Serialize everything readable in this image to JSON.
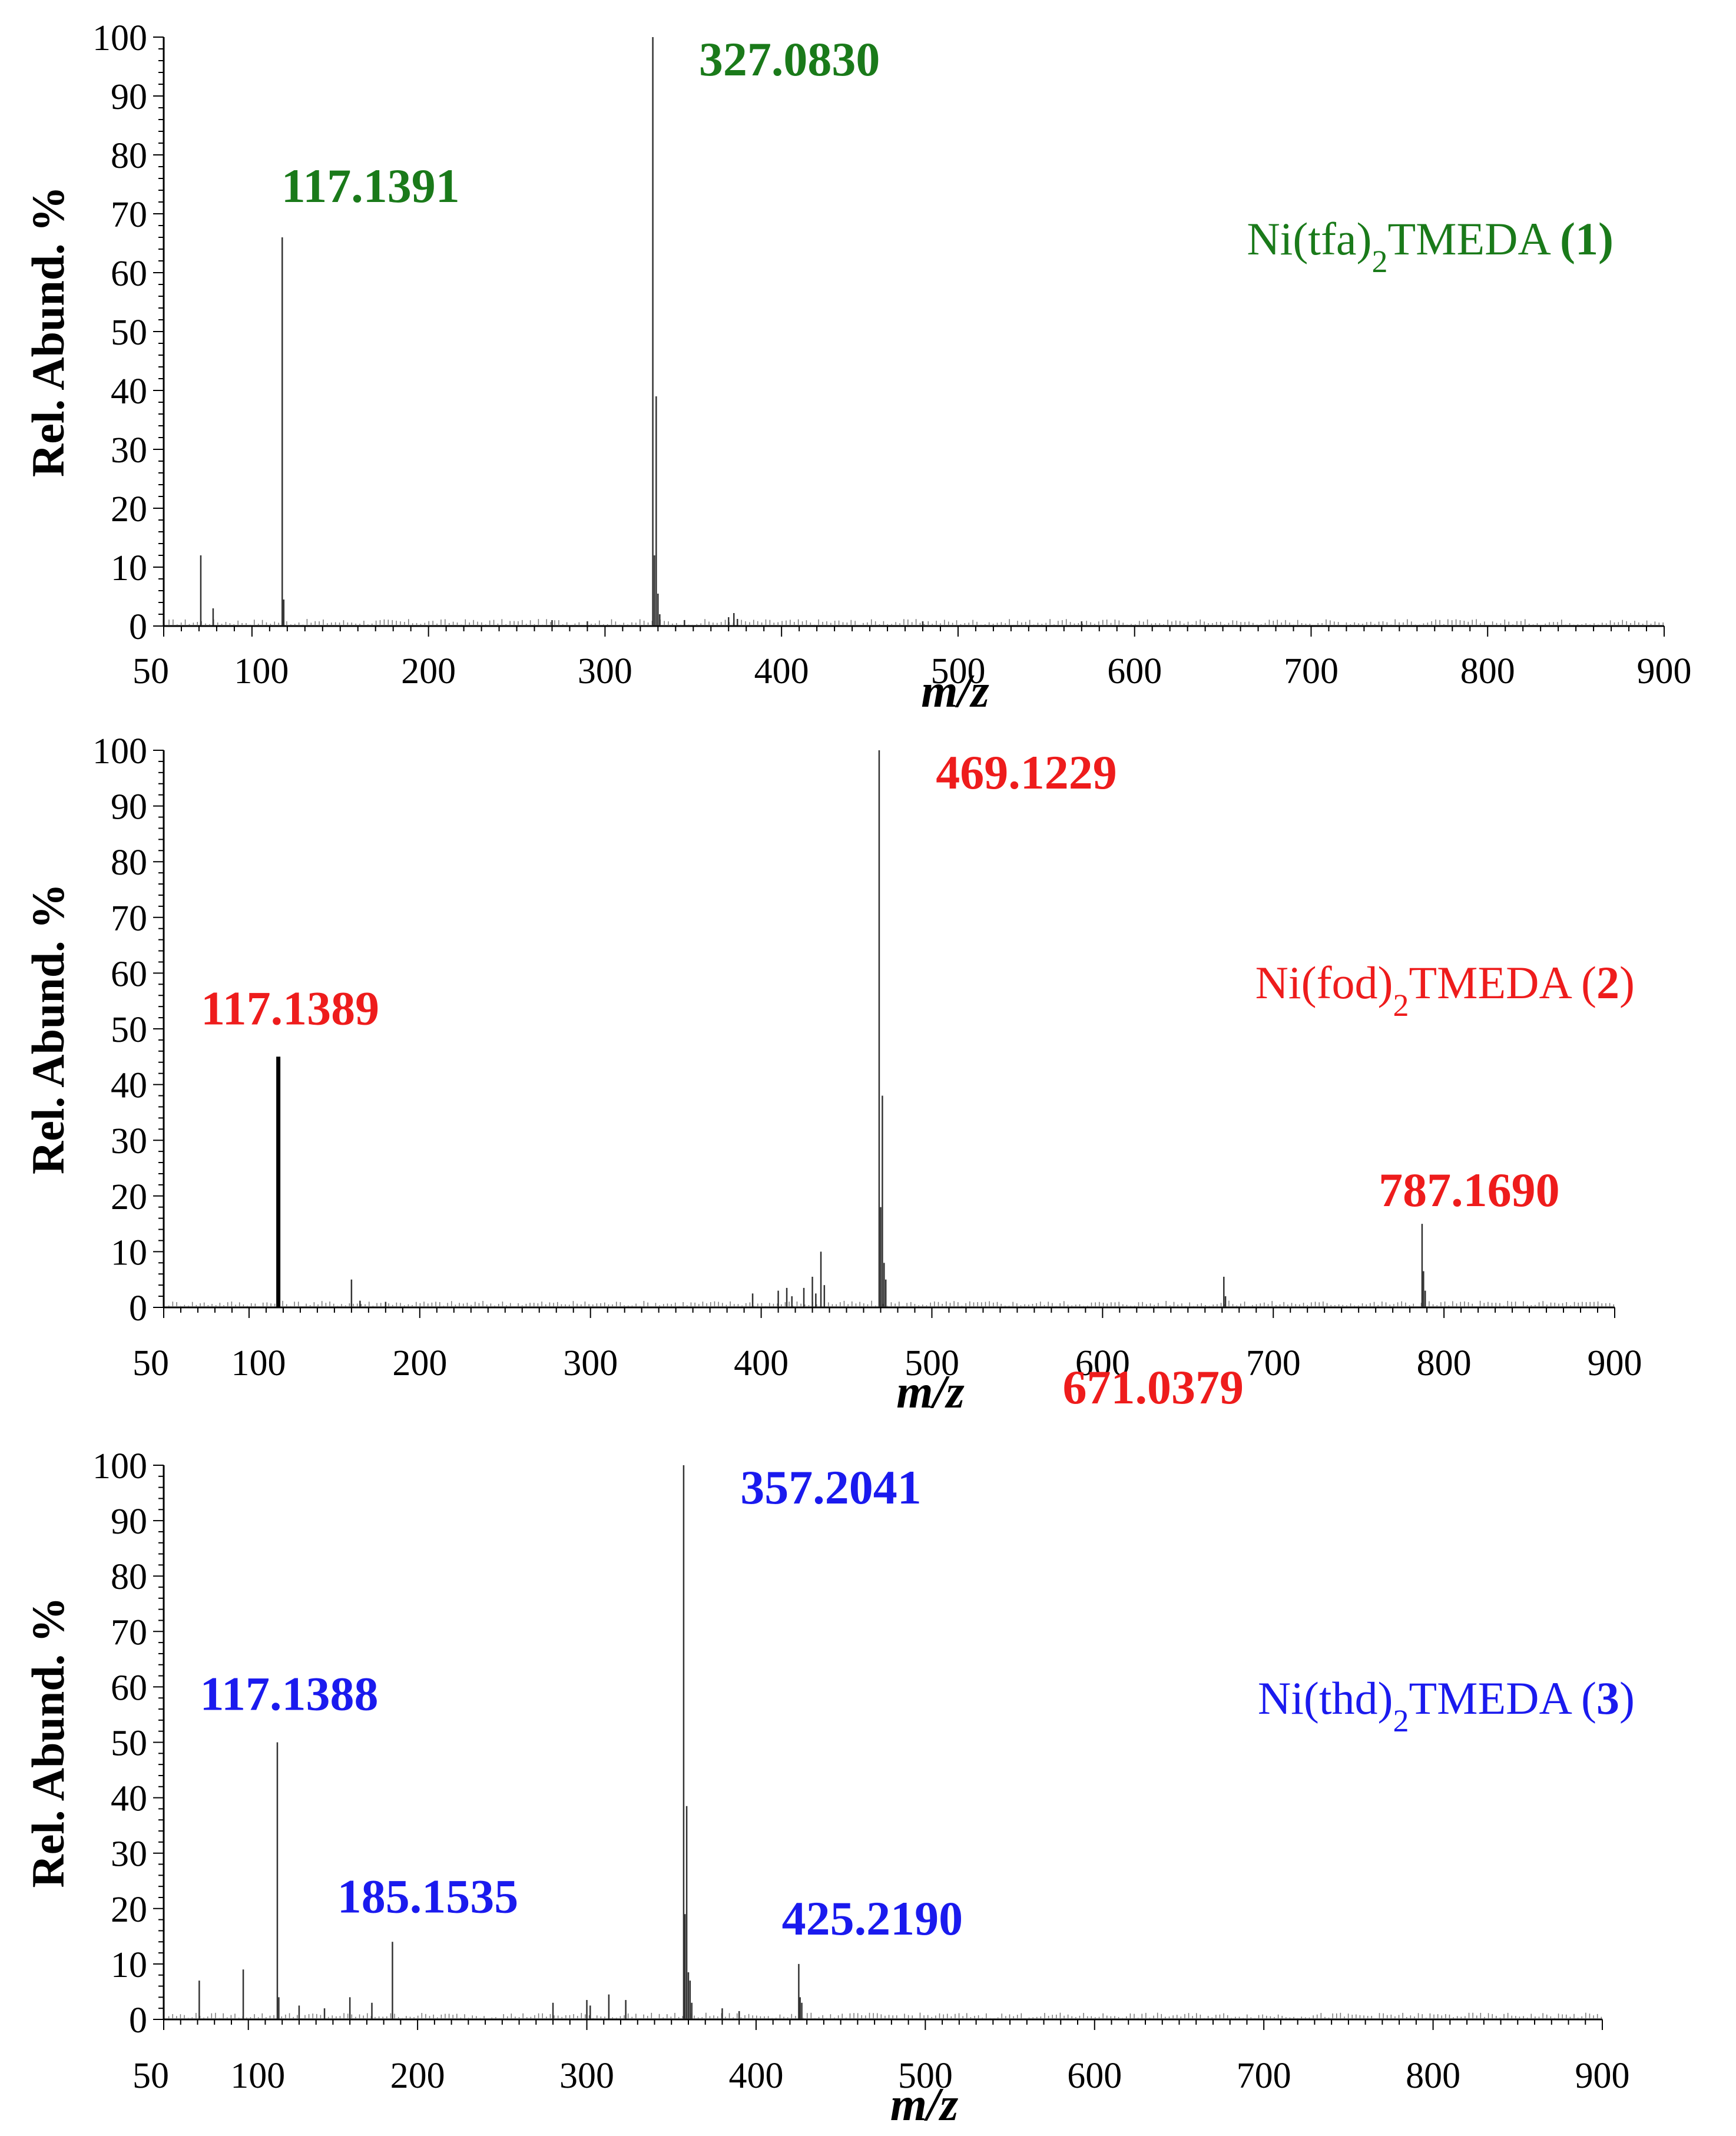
{
  "chart_data": [
    {
      "type": "bar",
      "title": "",
      "xlabel": "m/z",
      "ylabel": "Rel. Abund. %",
      "xlim": [
        50,
        900
      ],
      "ylim": [
        0,
        100
      ],
      "xticks": [
        50,
        100,
        200,
        300,
        400,
        500,
        600,
        700,
        800,
        900
      ],
      "yticks": [
        0,
        10,
        20,
        30,
        40,
        50,
        60,
        70,
        80,
        90,
        100
      ],
      "color": "#1a7a1a",
      "compound": {
        "prefix": "Ni(tfa)",
        "sub": "2",
        "suffix": "TMEDA ",
        "num": "1"
      },
      "peaks": [
        {
          "x": 71,
          "y": 12
        },
        {
          "x": 78,
          "y": 3
        },
        {
          "x": 117.1391,
          "y": 66,
          "label": "117.1391"
        },
        {
          "x": 118,
          "y": 4.5
        },
        {
          "x": 270,
          "y": 1
        },
        {
          "x": 290,
          "y": 0.8
        },
        {
          "x": 327.083,
          "y": 100,
          "label": "327.0830"
        },
        {
          "x": 328,
          "y": 12
        },
        {
          "x": 329,
          "y": 39
        },
        {
          "x": 330,
          "y": 5.5
        },
        {
          "x": 331,
          "y": 2
        },
        {
          "x": 345,
          "y": 1
        },
        {
          "x": 370,
          "y": 1.5
        },
        {
          "x": 373,
          "y": 2.2
        },
        {
          "x": 375,
          "y": 1.2
        },
        {
          "x": 480,
          "y": 0.8
        },
        {
          "x": 570,
          "y": 0.8
        }
      ]
    },
    {
      "type": "bar",
      "title": "",
      "xlabel": "m/z",
      "ylabel": "Rel. Abund. %",
      "xlim": [
        50,
        900
      ],
      "ylim": [
        0,
        100
      ],
      "xticks": [
        50,
        100,
        200,
        300,
        400,
        500,
        600,
        700,
        800,
        900
      ],
      "yticks": [
        0,
        10,
        20,
        30,
        40,
        50,
        60,
        70,
        80,
        90,
        100
      ],
      "color": "#ee1c1c",
      "compound": {
        "prefix": "Ni(fod)",
        "sub": "2",
        "suffix": "TMEDA (",
        "num": "2",
        "close": ")"
      },
      "peaks": [
        {
          "x": 117.1389,
          "y": 45,
          "label": "117.1389",
          "bold": true
        },
        {
          "x": 160,
          "y": 5
        },
        {
          "x": 165,
          "y": 1.2
        },
        {
          "x": 180,
          "y": 1
        },
        {
          "x": 395,
          "y": 2.5
        },
        {
          "x": 410,
          "y": 3
        },
        {
          "x": 415,
          "y": 3.5
        },
        {
          "x": 418,
          "y": 2
        },
        {
          "x": 425,
          "y": 3.5
        },
        {
          "x": 430,
          "y": 5.5
        },
        {
          "x": 432,
          "y": 2.5
        },
        {
          "x": 435,
          "y": 10
        },
        {
          "x": 437,
          "y": 4
        },
        {
          "x": 469.1229,
          "y": 100,
          "label": "469.1229"
        },
        {
          "x": 470,
          "y": 18
        },
        {
          "x": 471,
          "y": 38
        },
        {
          "x": 472,
          "y": 8
        },
        {
          "x": 473,
          "y": 5
        },
        {
          "x": 671.0379,
          "y": 5.5,
          "label": "671.0379"
        },
        {
          "x": 672,
          "y": 2
        },
        {
          "x": 787.169,
          "y": 15,
          "label": "787.1690"
        },
        {
          "x": 788,
          "y": 6.5
        },
        {
          "x": 789,
          "y": 3
        }
      ]
    },
    {
      "type": "bar",
      "title": "",
      "xlabel": "m/z",
      "ylabel": "Rel. Abund. %",
      "xlim": [
        50,
        900
      ],
      "ylim": [
        0,
        100
      ],
      "xticks": [
        50,
        100,
        200,
        300,
        400,
        500,
        600,
        700,
        800,
        900
      ],
      "yticks": [
        0,
        10,
        20,
        30,
        40,
        50,
        60,
        70,
        80,
        90,
        100
      ],
      "color": "#1a1aee",
      "compound": {
        "prefix": "Ni(thd)",
        "sub": "2",
        "suffix": "TMEDA (",
        "num": "3",
        "close": ")"
      },
      "peaks": [
        {
          "x": 71,
          "y": 7
        },
        {
          "x": 97,
          "y": 9
        },
        {
          "x": 117.1388,
          "y": 50,
          "label": "117.1388"
        },
        {
          "x": 118,
          "y": 4
        },
        {
          "x": 130,
          "y": 2.5
        },
        {
          "x": 145,
          "y": 2
        },
        {
          "x": 160,
          "y": 4
        },
        {
          "x": 173,
          "y": 3
        },
        {
          "x": 185.1535,
          "y": 14,
          "label": "185.1535"
        },
        {
          "x": 280,
          "y": 3
        },
        {
          "x": 300,
          "y": 3.5
        },
        {
          "x": 302,
          "y": 2.5
        },
        {
          "x": 313,
          "y": 4.5
        },
        {
          "x": 323,
          "y": 3.5
        },
        {
          "x": 357.2041,
          "y": 100,
          "label": "357.2041"
        },
        {
          "x": 358,
          "y": 19
        },
        {
          "x": 359,
          "y": 38.5
        },
        {
          "x": 360,
          "y": 8.5
        },
        {
          "x": 361,
          "y": 7
        },
        {
          "x": 362,
          "y": 3
        },
        {
          "x": 380,
          "y": 2
        },
        {
          "x": 390,
          "y": 1.5
        },
        {
          "x": 425.219,
          "y": 10,
          "label": "425.2190"
        },
        {
          "x": 426,
          "y": 4
        },
        {
          "x": 427,
          "y": 3
        }
      ]
    }
  ]
}
